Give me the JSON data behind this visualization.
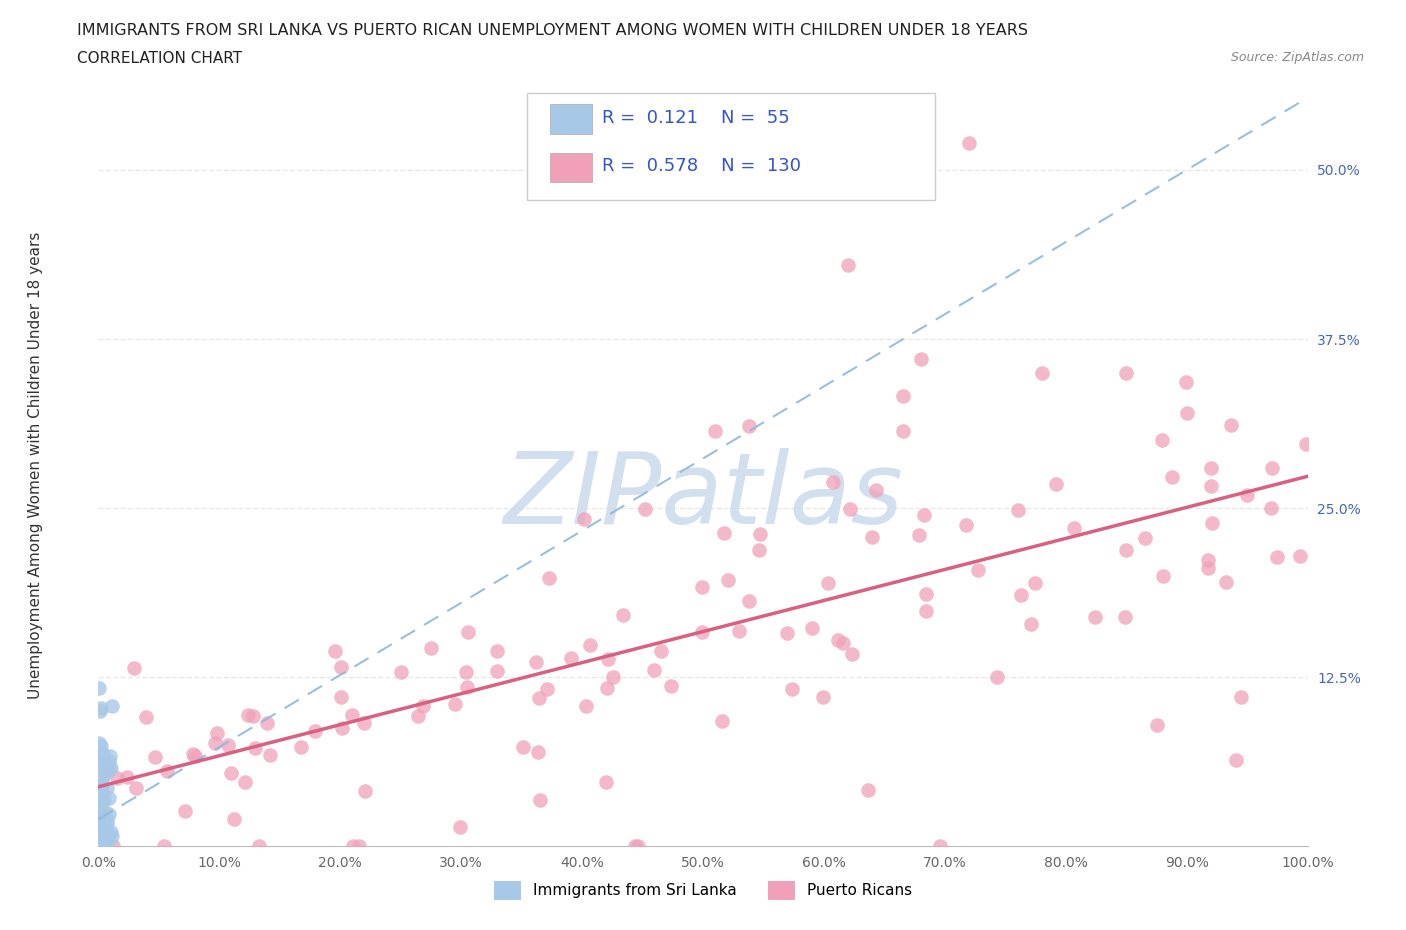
{
  "title_line1": "IMMIGRANTS FROM SRI LANKA VS PUERTO RICAN UNEMPLOYMENT AMONG WOMEN WITH CHILDREN UNDER 18 YEARS",
  "title_line2": "CORRELATION CHART",
  "source_text": "Source: ZipAtlas.com",
  "ylabel": "Unemployment Among Women with Children Under 18 years",
  "xmin": 0.0,
  "xmax": 100.0,
  "ymin": 0.0,
  "ymax": 55.0,
  "ytick_vals": [
    12.5,
    25.0,
    37.5,
    50.0
  ],
  "ytick_labels": [
    "12.5%",
    "25.0%",
    "37.5%",
    "50.0%"
  ],
  "xtick_vals": [
    0,
    10,
    20,
    30,
    40,
    50,
    60,
    70,
    80,
    90,
    100
  ],
  "xtick_labels": [
    "0.0%",
    "10.0%",
    "20.0%",
    "30.0%",
    "40.0%",
    "50.0%",
    "60.0%",
    "70.0%",
    "80.0%",
    "90.0%",
    "100.0%"
  ],
  "legend_items": [
    {
      "label": "Immigrants from Sri Lanka",
      "color": "#a8c8e8",
      "R": 0.121,
      "N": 55
    },
    {
      "label": "Puerto Ricans",
      "color": "#f0a0b8",
      "R": 0.578,
      "N": 130
    }
  ],
  "blue_dot_color": "#a8c8e8",
  "pink_dot_color": "#f0a0b8",
  "blue_line_color": "#90b8d8",
  "pink_line_color": "#d86080",
  "watermark_color": "#ccdcee",
  "background_color": "#ffffff",
  "grid_color": "#e8e8e8"
}
